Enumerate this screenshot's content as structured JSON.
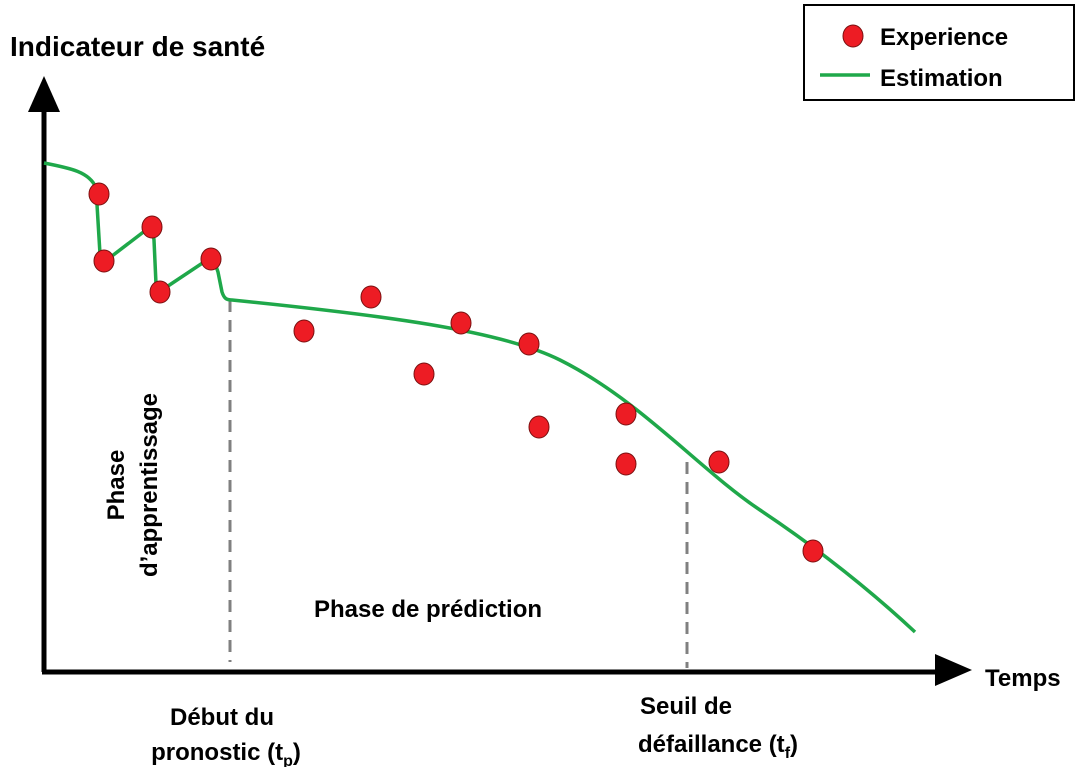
{
  "title": "Indicateur de santé",
  "x_axis_label": "Temps",
  "legend": {
    "experience": "Experience",
    "estimation": "Estimation"
  },
  "learning_phase": {
    "line1": "Phase",
    "line2": "d’apprentissage"
  },
  "prediction_phase": "Phase de prédiction",
  "prognosis_start": {
    "line1": "Début du",
    "line2": "pronostic (t",
    "sub": "p",
    "close": ")"
  },
  "failure_threshold": {
    "line1": "Seuil de",
    "line2": "défaillance (t",
    "sub": "f",
    "close": ")"
  }
}
